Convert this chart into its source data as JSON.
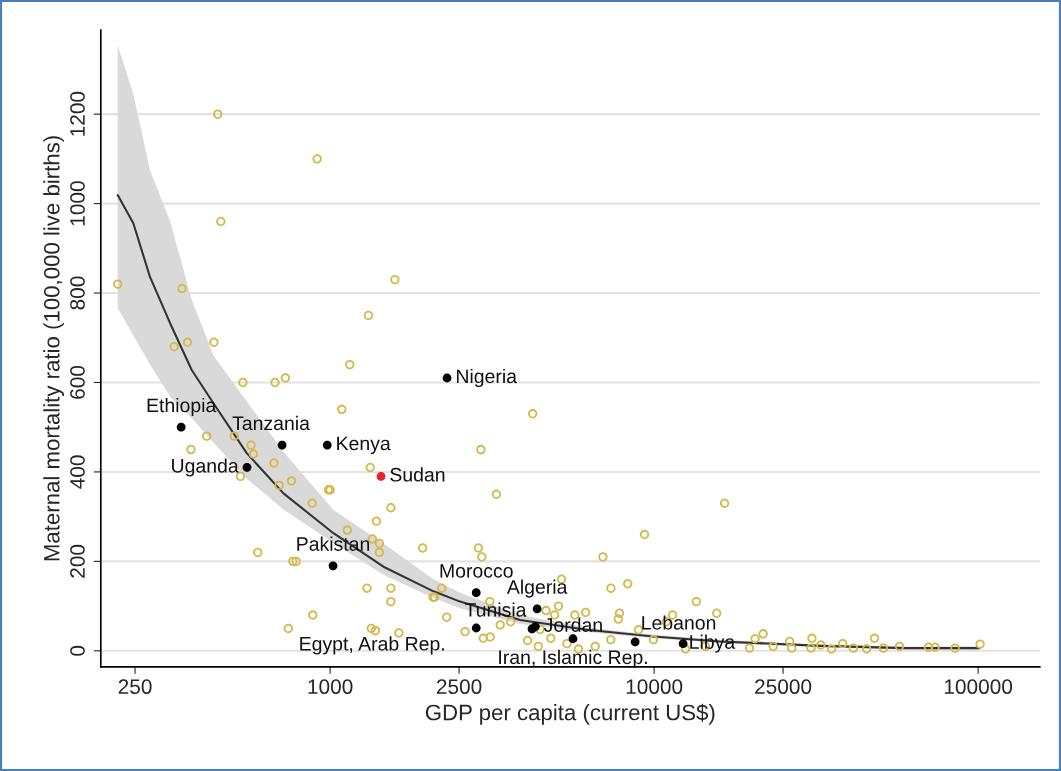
{
  "chart_data": {
    "type": "scatter",
    "xlabel": "GDP per capita (current US$)",
    "ylabel": "Maternal mortality ratio (100,000 live births)",
    "log": "x",
    "xlim": [
      196,
      155000
    ],
    "xticks": [
      250,
      1000,
      2500,
      10000,
      25000,
      100000
    ],
    "ylim": [
      -36,
      1388
    ],
    "yticks": [
      0,
      200,
      400,
      600,
      800,
      1000,
      1200
    ],
    "grid": "y",
    "legend": false,
    "marker": "circle",
    "series": [
      {
        "color": "#d4b84a",
        "x": [
          450,
          912,
          460,
          221,
          349,
          1585,
          1313,
          330,
          363,
          438,
          1150,
          538,
          676,
          728,
          1087,
          416,
          506,
          372,
          570,
          580,
          671,
          529,
          760,
          696,
          988,
          1000,
          1330,
          880,
          1540,
          1390,
          1130,
          1350,
          1420,
          1420,
          1930,
          598,
          767,
          785,
          1300,
          1540,
          1540,
          884,
          743,
          1340,
          1380,
          1630,
          2080,
          2100,
          4220,
          2920,
          3260,
          2870,
          2940,
          9340,
          6950,
          16500,
          5180,
          7360,
          8290,
          13500,
          2210,
          3110,
          2290,
          2610,
          2970,
          3120,
          3350,
          3610,
          4640,
          5070,
          4930,
          5690,
          6150,
          7820,
          7750,
          4070,
          4390,
          4800,
          5380,
          6580,
          5840,
          7350,
          8950,
          9950,
          11400,
          10900,
          15600,
          12500,
          14400,
          4450,
          21700,
          30700,
          47900,
          26200,
          20500,
          19700,
          23300,
          26600,
          30500,
          35300,
          38200,
          41200,
          45300,
          51000,
          57200,
          70300,
          73700,
          84900,
          101400,
          32700
        ],
        "values": [
          1200,
          1100,
          960,
          820,
          810,
          830,
          750,
          680,
          690,
          690,
          640,
          600,
          600,
          610,
          540,
          480,
          480,
          450,
          460,
          440,
          420,
          390,
          380,
          370,
          360,
          360,
          410,
          330,
          320,
          290,
          270,
          250,
          240,
          220,
          230,
          220,
          200,
          200,
          140,
          140,
          110,
          80,
          50,
          50,
          45,
          40,
          120,
          120,
          530,
          450,
          350,
          230,
          210,
          260,
          210,
          330,
          160,
          140,
          150,
          110,
          140,
          110,
          75,
          43,
          28,
          31,
          58,
          65,
          90,
          100,
          80,
          80,
          86,
          84,
          71,
          23,
          10,
          28,
          16,
          10,
          4,
          25,
          47,
          25,
          80,
          65,
          84,
          4,
          10,
          48,
          38,
          28,
          28,
          21,
          27,
          6,
          10,
          6,
          6,
          4,
          16,
          6,
          4,
          6,
          10,
          8,
          8,
          6,
          15,
          13
        ]
      },
      {
        "color": "#000000",
        "x": [
          347,
          711,
          980,
          554,
          1021,
          2296,
          2825,
          4355,
          4200,
          2825,
          4300,
          5620,
          8740,
          12290
        ],
        "values": [
          500,
          460,
          460,
          410,
          190,
          610,
          130,
          94,
          49,
          51,
          54,
          27,
          20,
          16
        ]
      },
      {
        "color": "#e8262a",
        "x": [
          1436
        ],
        "values": [
          390
        ]
      },
      {
        "type": "line",
        "marker": "none",
        "color": "#333333",
        "x": [
          221,
          247,
          278,
          321,
          374,
          437,
          553,
          718,
          1024,
          1461,
          2085,
          2519,
          3855,
          6196,
          9949,
          15970,
          32700,
          60000,
          101000
        ],
        "values": [
          1019,
          956,
          836,
          732,
          628,
          553,
          442,
          352,
          263,
          188,
          133,
          110,
          69,
          47,
          32,
          21,
          11,
          6,
          6
        ],
        "lower": [
          766,
          705,
          640,
          568,
          520,
          465,
          385,
          316,
          241,
          170,
          118,
          95,
          60,
          42,
          28,
          17,
          8,
          3,
          2
        ],
        "upper": [
          1354,
          1245,
          1075,
          960,
          785,
          660,
          558,
          445,
          315,
          240,
          160,
          130,
          80,
          52,
          36,
          25,
          14,
          9,
          10
        ]
      }
    ],
    "annotations": [
      {
        "text": "Ethiopia",
        "x": 347,
        "y": 500
      },
      {
        "text": "Tanzania",
        "x": 711,
        "y": 460
      },
      {
        "text": "Kenya",
        "x": 980,
        "y": 460
      },
      {
        "text": "Uganda",
        "x": 554,
        "y": 410
      },
      {
        "text": "Sudan",
        "x": 1436,
        "y": 390
      },
      {
        "text": "Pakistan",
        "x": 1021,
        "y": 190
      },
      {
        "text": "Nigeria",
        "x": 2296,
        "y": 610
      },
      {
        "text": "Morocco",
        "x": 2825,
        "y": 130
      },
      {
        "text": "Algeria",
        "x": 4355,
        "y": 94
      },
      {
        "text": "Tunisia",
        "x": 4200,
        "y": 49
      },
      {
        "text": "Egypt, Arab Rep.",
        "x": 2825,
        "y": 51
      },
      {
        "text": "Jordan",
        "x": 4300,
        "y": 54
      },
      {
        "text": "Iran, Islamic Rep.",
        "x": 5620,
        "y": 27
      },
      {
        "text": "Lebanon",
        "x": 8740,
        "y": 20
      },
      {
        "text": "Libya",
        "x": 12290,
        "y": 16
      }
    ]
  }
}
